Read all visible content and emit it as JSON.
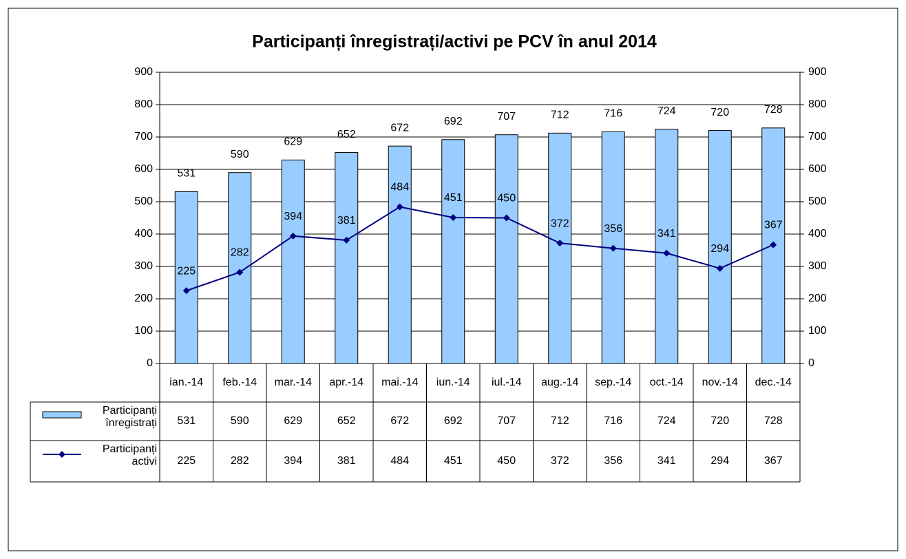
{
  "chart_data": {
    "type": "bar_line",
    "title": "Participanți înregistrați/activi pe PCV în anul 2014",
    "categories": [
      "ian.-14",
      "feb.-14",
      "mar.-14",
      "apr.-14",
      "mai.-14",
      "iun.-14",
      "iul.-14",
      "aug.-14",
      "sep.-14",
      "oct.-14",
      "nov.-14",
      "dec.-14"
    ],
    "series": [
      {
        "name": "Participanți înregistrați",
        "type": "bar",
        "color": "#99ccff",
        "values": [
          531,
          590,
          629,
          652,
          672,
          692,
          707,
          712,
          716,
          724,
          720,
          728
        ]
      },
      {
        "name": "Participanți activi",
        "type": "line",
        "color": "#000080",
        "axis": "y2",
        "values": [
          225,
          282,
          394,
          381,
          484,
          451,
          450,
          372,
          356,
          341,
          294,
          367
        ]
      }
    ],
    "ylim": [
      0,
      900
    ],
    "yticks": [
      0,
      100,
      200,
      300,
      400,
      500,
      600,
      700,
      800,
      900
    ],
    "y2lim": [
      0,
      900
    ],
    "y2ticks": [
      0,
      100,
      200,
      300,
      400,
      500,
      600,
      700,
      800,
      900
    ],
    "grid": true,
    "legend": "data-table"
  }
}
